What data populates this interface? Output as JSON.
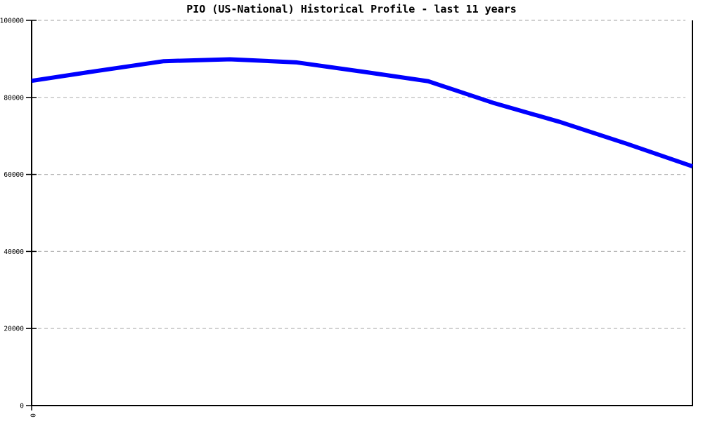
{
  "page": {
    "background": "#ffffff"
  },
  "chart_data": {
    "type": "line",
    "title": "PIO (US-National) Historical Profile - last 11 years",
    "xlabel": "",
    "ylabel": "",
    "x": [
      0,
      1,
      2,
      3,
      4,
      5,
      6,
      7,
      8,
      9,
      10
    ],
    "series": [
      {
        "name": "PIO (US-National)",
        "color": "#0000ff",
        "line_width": 6,
        "values": [
          84300,
          86900,
          89400,
          89900,
          89100,
          86700,
          84200,
          78500,
          73600,
          68000,
          62100
        ]
      }
    ],
    "ylim": [
      0,
      100000
    ],
    "yticks": [
      0,
      20000,
      40000,
      60000,
      80000,
      100000
    ],
    "ytick_labels": [
      "0",
      "20000",
      "40000",
      "60000",
      "80000",
      "100000"
    ],
    "xtick_labels": [
      "0"
    ],
    "xtick_label_rotation_deg": 90,
    "grid": {
      "horizontal": true,
      "vertical": false,
      "style": "dashed",
      "color": "#b5b5b5"
    },
    "legend": "none",
    "axis_color": "#000000",
    "text_color": "#000000",
    "frame": "left-bottom-right"
  }
}
